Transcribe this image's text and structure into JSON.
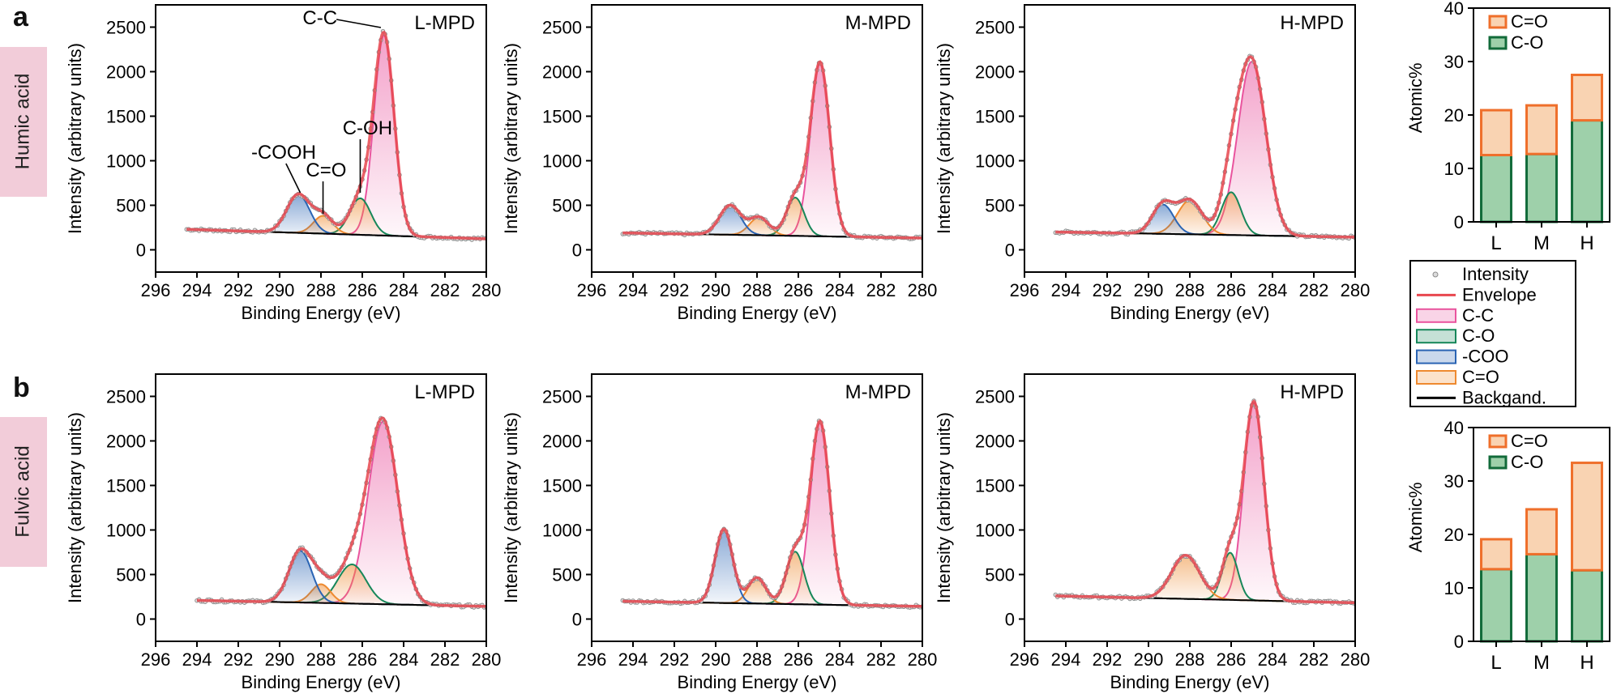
{
  "figure": {
    "panel_a_letter": "a",
    "panel_b_letter": "b",
    "row_labels": [
      "Humic acid",
      "Fulvic acid"
    ]
  },
  "colors": {
    "intensity_points": "#8a8a8a",
    "envelope": "#e8474f",
    "background_line": "#000000",
    "C-C": "#e9549e",
    "C-O": "#16875a",
    "-COO": "#2a64b4",
    "C=O": "#ee8a30",
    "bar_C-O_fill": "#9ed0aa",
    "bar_C-O_edge": "#126b3a",
    "bar_C=O_fill": "#f9d3b2",
    "bar_C=O_edge": "#ef6f2b",
    "row_label_bg": "#f2ccd9"
  },
  "shared_legend": {
    "entries": [
      {
        "label": "Intensity",
        "kind": "points"
      },
      {
        "label": "Envelope",
        "kind": "line",
        "color": "#e8474f"
      },
      {
        "label": "C-C",
        "kind": "box",
        "color": "#e9549e"
      },
      {
        "label": "C-O",
        "kind": "box",
        "color": "#16875a"
      },
      {
        "label": "-COO",
        "kind": "box",
        "color": "#2a64b4"
      },
      {
        "label": "C=O",
        "kind": "box",
        "color": "#ee8a30"
      },
      {
        "label": "Backgand.",
        "kind": "line",
        "color": "#000000"
      }
    ]
  },
  "chart_data": [
    {
      "type": "line",
      "row": 0,
      "col": 0,
      "sample": "L-MPD",
      "xlabel": "Binding Energy (eV)",
      "ylabel": "Intensity (arbitrary units)",
      "xlim": [
        296,
        280
      ],
      "xticks": [
        296,
        294,
        292,
        290,
        288,
        286,
        284,
        282,
        280
      ],
      "ylim": [
        -250,
        2750
      ],
      "yticks": [
        0,
        500,
        1000,
        1500,
        2000,
        2500
      ],
      "data_x_range": [
        294.5,
        279.5
      ],
      "background": {
        "start": 230,
        "end": 120
      },
      "annotations": [
        "-COOH",
        "C=O",
        "C-OH",
        "C-C"
      ],
      "series": [
        {
          "name": "C-C",
          "center": 284.95,
          "amplitude": 2250,
          "fwhm": 1.15
        },
        {
          "name": "C-O",
          "center": 286.1,
          "amplitude": 410,
          "fwhm": 1.2
        },
        {
          "name": "C=O",
          "center": 287.9,
          "amplitude": 200,
          "fwhm": 1.1
        },
        {
          "name": "-COO",
          "center": 289.1,
          "amplitude": 430,
          "fwhm": 1.3
        }
      ]
    },
    {
      "type": "line",
      "row": 0,
      "col": 1,
      "sample": "M-MPD",
      "xlabel": "Binding Energy (eV)",
      "ylabel": "Intensity (arbitrary units)",
      "xlim": [
        296,
        280
      ],
      "xticks": [
        296,
        294,
        292,
        290,
        288,
        286,
        284,
        282,
        280
      ],
      "ylim": [
        -250,
        2750
      ],
      "yticks": [
        0,
        500,
        1000,
        1500,
        2000,
        2500
      ],
      "data_x_range": [
        294.5,
        279.5
      ],
      "background": {
        "start": 190,
        "end": 130
      },
      "annotations": [],
      "series": [
        {
          "name": "C-C",
          "center": 284.95,
          "amplitude": 1950,
          "fwhm": 1.1
        },
        {
          "name": "C-O",
          "center": 286.15,
          "amplitude": 430,
          "fwhm": 1.0
        },
        {
          "name": "C=O",
          "center": 287.9,
          "amplitude": 200,
          "fwhm": 1.1
        },
        {
          "name": "-COO",
          "center": 289.3,
          "amplitude": 330,
          "fwhm": 1.2
        }
      ]
    },
    {
      "type": "line",
      "row": 0,
      "col": 2,
      "sample": "H-MPD",
      "xlabel": "Binding Energy (eV)",
      "ylabel": "Intensity (arbitrary units)",
      "xlim": [
        296,
        280
      ],
      "xticks": [
        296,
        294,
        292,
        290,
        288,
        286,
        284,
        282,
        280
      ],
      "ylim": [
        -250,
        2750
      ],
      "yticks": [
        0,
        500,
        1000,
        1500,
        2000,
        2500
      ],
      "data_x_range": [
        294.5,
        279.5
      ],
      "background": {
        "start": 200,
        "end": 140
      },
      "annotations": [],
      "series": [
        {
          "name": "C-C",
          "center": 285.0,
          "amplitude": 1950,
          "fwhm": 1.6
        },
        {
          "name": "C-O",
          "center": 286.0,
          "amplitude": 480,
          "fwhm": 1.1
        },
        {
          "name": "C=O",
          "center": 288.0,
          "amplitude": 380,
          "fwhm": 1.4
        },
        {
          "name": "-COO",
          "center": 289.3,
          "amplitude": 330,
          "fwhm": 1.2
        }
      ]
    },
    {
      "type": "line",
      "row": 1,
      "col": 0,
      "sample": "L-MPD",
      "xlabel": "Binding Energy (eV)",
      "ylabel": "Intensity (arbitrary units)",
      "xlim": [
        296,
        280
      ],
      "xticks": [
        296,
        294,
        292,
        290,
        288,
        286,
        284,
        282,
        280
      ],
      "ylim": [
        -250,
        2750
      ],
      "yticks": [
        0,
        500,
        1000,
        1500,
        2000,
        2500
      ],
      "data_x_range": [
        294,
        279.5
      ],
      "background": {
        "start": 210,
        "end": 140
      },
      "annotations": [],
      "series": [
        {
          "name": "C-C",
          "center": 285.0,
          "amplitude": 2050,
          "fwhm": 1.7
        },
        {
          "name": "C-O",
          "center": 286.5,
          "amplitude": 440,
          "fwhm": 1.6
        },
        {
          "name": "C=O",
          "center": 288.0,
          "amplitude": 210,
          "fwhm": 1.1
        },
        {
          "name": "-COO",
          "center": 289.0,
          "amplitude": 580,
          "fwhm": 1.3
        }
      ]
    },
    {
      "type": "line",
      "row": 1,
      "col": 1,
      "sample": "M-MPD",
      "xlabel": "Binding Energy (eV)",
      "ylabel": "Intensity (arbitrary units)",
      "xlim": [
        296,
        280
      ],
      "xticks": [
        296,
        294,
        292,
        290,
        288,
        286,
        284,
        282,
        280
      ],
      "ylim": [
        -250,
        2750
      ],
      "yticks": [
        0,
        500,
        1000,
        1500,
        2000,
        2500
      ],
      "data_x_range": [
        294.5,
        279.5
      ],
      "background": {
        "start": 200,
        "end": 140
      },
      "annotations": [],
      "series": [
        {
          "name": "C-C",
          "center": 284.95,
          "amplitude": 2050,
          "fwhm": 1.1
        },
        {
          "name": "C-O",
          "center": 286.15,
          "amplitude": 590,
          "fwhm": 1.0
        },
        {
          "name": "C=O",
          "center": 288.0,
          "amplitude": 290,
          "fwhm": 1.0
        },
        {
          "name": "-COO",
          "center": 289.6,
          "amplitude": 830,
          "fwhm": 1.0
        }
      ]
    },
    {
      "type": "line",
      "row": 1,
      "col": 2,
      "sample": "H-MPD",
      "xlabel": "Binding Energy (eV)",
      "ylabel": "Intensity (arbitrary units)",
      "xlim": [
        296,
        280
      ],
      "xticks": [
        296,
        294,
        292,
        290,
        288,
        286,
        284,
        282,
        280
      ],
      "ylim": [
        -250,
        2750
      ],
      "yticks": [
        0,
        500,
        1000,
        1500,
        2000,
        2500
      ],
      "data_x_range": [
        294.5,
        279.5
      ],
      "background": {
        "start": 260,
        "end": 180
      },
      "annotations": [],
      "series": [
        {
          "name": "C-C",
          "center": 284.9,
          "amplitude": 2230,
          "fwhm": 1.15
        },
        {
          "name": "C-O",
          "center": 286.05,
          "amplitude": 530,
          "fwhm": 0.9
        },
        {
          "name": "C=O",
          "center": 288.2,
          "amplitude": 490,
          "fwhm": 1.6
        },
        {
          "name": "-COO",
          "center": 289.5,
          "amplitude": 0,
          "fwhm": 1.0
        }
      ]
    },
    {
      "type": "bar",
      "row": 0,
      "col": 3,
      "stacked": true,
      "categories": [
        "L",
        "M",
        "H"
      ],
      "ylabel": "Atomic%",
      "ylim": [
        0,
        40
      ],
      "yticks": [
        0,
        10,
        20,
        30,
        40
      ],
      "series": [
        {
          "name": "C-O",
          "values": [
            12.5,
            12.7,
            19.0
          ]
        },
        {
          "name": "C=O",
          "values": [
            8.4,
            9.1,
            8.5
          ]
        }
      ],
      "legend": [
        "C=O",
        "C-O"
      ]
    },
    {
      "type": "bar",
      "row": 1,
      "col": 3,
      "stacked": true,
      "categories": [
        "L",
        "M",
        "H"
      ],
      "ylabel": "Atomic%",
      "ylim": [
        0,
        40
      ],
      "yticks": [
        0,
        10,
        20,
        30,
        40
      ],
      "series": [
        {
          "name": "C-O",
          "values": [
            13.5,
            16.3,
            13.3
          ]
        },
        {
          "name": "C=O",
          "values": [
            5.6,
            8.4,
            20.1
          ]
        }
      ],
      "legend": [
        "C=O",
        "C-O"
      ]
    }
  ]
}
